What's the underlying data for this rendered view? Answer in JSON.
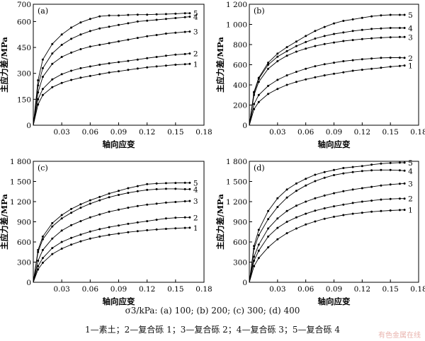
{
  "caption_line1": "σ3/kPa: (a) 100; (b) 200; (c) 300; (d) 400",
  "caption_line2": "1—素土；2—复合砾 1；3—复合砾 2；4—复合砾 3；5—复合砾 4",
  "watermark": "有色金属在线",
  "chart_data": [
    {
      "type": "line",
      "panel_label": "(a)",
      "xlabel": "轴向应变",
      "ylabel": "主应力差/MPa",
      "xlim": [
        0,
        0.18
      ],
      "ylim": [
        0,
        700
      ],
      "xticks": [
        0.03,
        0.06,
        0.09,
        0.12,
        0.15,
        0.18
      ],
      "xticklabels": [
        "0.03",
        "0.06",
        "0.09",
        "0.12",
        "0.15",
        "0.18"
      ],
      "yticks": [
        0,
        150,
        300,
        450,
        600,
        700
      ],
      "yticklabels": [
        "0",
        "150",
        "300",
        "450",
        "600",
        "700"
      ],
      "series": [
        {
          "name": "5",
          "x": [
            0,
            0.005,
            0.01,
            0.02,
            0.03,
            0.04,
            0.05,
            0.06,
            0.07,
            0.08,
            0.09,
            0.1,
            0.11,
            0.12,
            0.13,
            0.14,
            0.15,
            0.16,
            0.165
          ],
          "y": [
            0,
            260,
            380,
            470,
            525,
            565,
            595,
            615,
            630,
            635,
            635,
            638,
            640,
            640,
            642,
            643,
            645,
            648,
            648
          ]
        },
        {
          "name": "4",
          "x": [
            0,
            0.005,
            0.01,
            0.02,
            0.03,
            0.04,
            0.05,
            0.06,
            0.07,
            0.08,
            0.09,
            0.1,
            0.11,
            0.12,
            0.13,
            0.14,
            0.15,
            0.16,
            0.165
          ],
          "y": [
            0,
            230,
            330,
            415,
            465,
            500,
            525,
            545,
            560,
            570,
            580,
            590,
            600,
            605,
            610,
            615,
            620,
            625,
            628
          ]
        },
        {
          "name": "3",
          "x": [
            0,
            0.005,
            0.01,
            0.02,
            0.03,
            0.04,
            0.05,
            0.06,
            0.07,
            0.08,
            0.09,
            0.1,
            0.11,
            0.12,
            0.13,
            0.14,
            0.15,
            0.16,
            0.165
          ],
          "y": [
            0,
            190,
            280,
            355,
            395,
            420,
            440,
            455,
            465,
            475,
            485,
            495,
            505,
            515,
            522,
            530,
            535,
            540,
            542
          ]
        },
        {
          "name": "2",
          "x": [
            0,
            0.005,
            0.01,
            0.02,
            0.03,
            0.04,
            0.05,
            0.06,
            0.07,
            0.08,
            0.09,
            0.1,
            0.11,
            0.12,
            0.13,
            0.14,
            0.15,
            0.16,
            0.165
          ],
          "y": [
            0,
            150,
            210,
            265,
            295,
            315,
            330,
            340,
            350,
            358,
            365,
            372,
            380,
            388,
            395,
            402,
            408,
            412,
            415
          ]
        },
        {
          "name": "1",
          "x": [
            0,
            0.005,
            0.01,
            0.02,
            0.03,
            0.04,
            0.05,
            0.06,
            0.07,
            0.08,
            0.09,
            0.1,
            0.11,
            0.12,
            0.13,
            0.14,
            0.15,
            0.16,
            0.165
          ],
          "y": [
            0,
            120,
            175,
            220,
            245,
            262,
            275,
            285,
            295,
            305,
            312,
            320,
            328,
            335,
            340,
            345,
            350,
            353,
            355
          ]
        }
      ]
    },
    {
      "type": "line",
      "panel_label": "(b)",
      "xlabel": "轴向应变",
      "ylabel": "主应力差/MPa",
      "xlim": [
        0,
        0.18
      ],
      "ylim": [
        0,
        1200
      ],
      "xticks": [
        0.03,
        0.06,
        0.09,
        0.12,
        0.15,
        0.18
      ],
      "xticklabels": [
        "0.03",
        "0.06",
        "0.09",
        "0.12",
        "0.15",
        "0.18"
      ],
      "yticks": [
        0,
        200,
        400,
        600,
        800,
        1000,
        1200
      ],
      "yticklabels": [
        "0",
        "200",
        "400",
        "600",
        "800",
        "1 000",
        "1 200"
      ],
      "series": [
        {
          "name": "5",
          "x": [
            0,
            0.005,
            0.01,
            0.02,
            0.03,
            0.04,
            0.05,
            0.06,
            0.07,
            0.08,
            0.09,
            0.1,
            0.11,
            0.12,
            0.13,
            0.14,
            0.15,
            0.16,
            0.165
          ],
          "y": [
            0,
            330,
            470,
            620,
            710,
            775,
            830,
            885,
            935,
            975,
            1010,
            1035,
            1050,
            1065,
            1080,
            1090,
            1095,
            1095,
            1095
          ]
        },
        {
          "name": "4",
          "x": [
            0,
            0.005,
            0.01,
            0.02,
            0.03,
            0.04,
            0.05,
            0.06,
            0.07,
            0.08,
            0.09,
            0.1,
            0.11,
            0.12,
            0.13,
            0.14,
            0.15,
            0.16,
            0.165
          ],
          "y": [
            0,
            320,
            460,
            600,
            680,
            735,
            785,
            825,
            860,
            885,
            905,
            920,
            935,
            945,
            955,
            960,
            965,
            965,
            965
          ]
        },
        {
          "name": "3",
          "x": [
            0,
            0.005,
            0.01,
            0.02,
            0.03,
            0.04,
            0.05,
            0.06,
            0.07,
            0.08,
            0.09,
            0.1,
            0.11,
            0.12,
            0.13,
            0.14,
            0.15,
            0.16,
            0.165
          ],
          "y": [
            0,
            300,
            430,
            560,
            635,
            690,
            730,
            760,
            785,
            805,
            820,
            835,
            845,
            855,
            862,
            868,
            872,
            875,
            875
          ]
        },
        {
          "name": "2",
          "x": [
            0,
            0.005,
            0.01,
            0.02,
            0.03,
            0.04,
            0.05,
            0.06,
            0.07,
            0.08,
            0.09,
            0.1,
            0.11,
            0.12,
            0.13,
            0.14,
            0.15,
            0.16,
            0.165
          ],
          "y": [
            0,
            210,
            300,
            390,
            450,
            495,
            530,
            560,
            585,
            605,
            620,
            635,
            645,
            655,
            662,
            668,
            670,
            670,
            668
          ]
        },
        {
          "name": "1",
          "x": [
            0,
            0.005,
            0.01,
            0.02,
            0.03,
            0.04,
            0.05,
            0.06,
            0.07,
            0.08,
            0.09,
            0.1,
            0.11,
            0.12,
            0.13,
            0.14,
            0.15,
            0.16,
            0.165
          ],
          "y": [
            0,
            160,
            230,
            310,
            360,
            400,
            430,
            455,
            475,
            495,
            510,
            525,
            540,
            550,
            560,
            570,
            580,
            588,
            592
          ]
        }
      ]
    },
    {
      "type": "line",
      "panel_label": "(c)",
      "xlabel": "轴向应变",
      "ylabel": "主应力差/MPa",
      "xlim": [
        0,
        0.18
      ],
      "ylim": [
        0,
        1800
      ],
      "xticks": [
        0.03,
        0.06,
        0.09,
        0.12,
        0.15,
        0.18
      ],
      "xticklabels": [
        "0.03",
        "0.06",
        "0.09",
        "0.12",
        "0.15",
        "0.18"
      ],
      "yticks": [
        0,
        300,
        600,
        900,
        1200,
        1500,
        1800
      ],
      "yticklabels": [
        "0",
        "300",
        "600",
        "900",
        "1 200",
        "1 500",
        "1 800"
      ],
      "series": [
        {
          "name": "5",
          "x": [
            0,
            0.005,
            0.01,
            0.02,
            0.03,
            0.04,
            0.05,
            0.06,
            0.07,
            0.08,
            0.09,
            0.1,
            0.11,
            0.12,
            0.13,
            0.14,
            0.15,
            0.16,
            0.165
          ],
          "y": [
            0,
            480,
            680,
            880,
            1000,
            1090,
            1160,
            1220,
            1270,
            1320,
            1360,
            1400,
            1430,
            1460,
            1470,
            1475,
            1478,
            1480,
            1480
          ]
        },
        {
          "name": "4",
          "x": [
            0,
            0.005,
            0.01,
            0.02,
            0.03,
            0.04,
            0.05,
            0.06,
            0.07,
            0.08,
            0.09,
            0.1,
            0.11,
            0.12,
            0.13,
            0.14,
            0.15,
            0.16,
            0.165
          ],
          "y": [
            0,
            450,
            640,
            830,
            950,
            1035,
            1110,
            1170,
            1220,
            1265,
            1300,
            1330,
            1355,
            1375,
            1385,
            1390,
            1390,
            1385,
            1385
          ]
        },
        {
          "name": "3",
          "x": [
            0,
            0.005,
            0.01,
            0.02,
            0.03,
            0.04,
            0.05,
            0.06,
            0.07,
            0.08,
            0.09,
            0.1,
            0.11,
            0.12,
            0.13,
            0.14,
            0.15,
            0.16,
            0.165
          ],
          "y": [
            0,
            320,
            480,
            650,
            770,
            850,
            910,
            965,
            1010,
            1050,
            1080,
            1110,
            1135,
            1155,
            1170,
            1185,
            1195,
            1205,
            1210
          ]
        },
        {
          "name": "2",
          "x": [
            0,
            0.005,
            0.01,
            0.02,
            0.03,
            0.04,
            0.05,
            0.06,
            0.07,
            0.08,
            0.09,
            0.1,
            0.11,
            0.12,
            0.13,
            0.14,
            0.15,
            0.16,
            0.165
          ],
          "y": [
            0,
            240,
            360,
            510,
            600,
            660,
            710,
            755,
            790,
            820,
            845,
            870,
            890,
            910,
            930,
            950,
            960,
            965,
            965
          ]
        },
        {
          "name": "1",
          "x": [
            0,
            0.005,
            0.01,
            0.02,
            0.03,
            0.04,
            0.05,
            0.06,
            0.07,
            0.08,
            0.09,
            0.1,
            0.11,
            0.12,
            0.13,
            0.14,
            0.15,
            0.16,
            0.165
          ],
          "y": [
            0,
            190,
            290,
            420,
            500,
            560,
            610,
            650,
            680,
            705,
            725,
            745,
            760,
            775,
            785,
            795,
            803,
            810,
            812
          ]
        }
      ]
    },
    {
      "type": "line",
      "panel_label": "(d)",
      "xlabel": "轴向应变",
      "ylabel": "主应力差/MPa",
      "xlim": [
        0,
        0.18
      ],
      "ylim": [
        0,
        1800
      ],
      "xticks": [
        0.03,
        0.06,
        0.09,
        0.12,
        0.15,
        0.18
      ],
      "xticklabels": [
        "0.03",
        "0.06",
        "0.09",
        "0.12",
        "0.15",
        "0.18"
      ],
      "yticks": [
        0,
        300,
        600,
        900,
        1200,
        1500,
        1800
      ],
      "yticklabels": [
        "0",
        "300",
        "600",
        "900",
        "1 200",
        "1 500",
        "1 800"
      ],
      "series": [
        {
          "name": "5",
          "x": [
            0,
            0.005,
            0.01,
            0.02,
            0.03,
            0.04,
            0.05,
            0.06,
            0.07,
            0.08,
            0.09,
            0.1,
            0.11,
            0.12,
            0.13,
            0.14,
            0.15,
            0.16,
            0.165
          ],
          "y": [
            0,
            540,
            780,
            1060,
            1250,
            1380,
            1470,
            1540,
            1600,
            1640,
            1670,
            1700,
            1715,
            1730,
            1750,
            1765,
            1775,
            1780,
            1780
          ]
        },
        {
          "name": "4",
          "x": [
            0,
            0.005,
            0.01,
            0.02,
            0.03,
            0.04,
            0.05,
            0.06,
            0.07,
            0.08,
            0.09,
            0.1,
            0.11,
            0.12,
            0.13,
            0.14,
            0.15,
            0.16,
            0.165
          ],
          "y": [
            0,
            500,
            700,
            940,
            1120,
            1260,
            1360,
            1440,
            1505,
            1555,
            1595,
            1620,
            1640,
            1655,
            1665,
            1670,
            1670,
            1665,
            1660
          ]
        },
        {
          "name": "3",
          "x": [
            0,
            0.005,
            0.01,
            0.02,
            0.03,
            0.04,
            0.05,
            0.06,
            0.07,
            0.08,
            0.09,
            0.1,
            0.11,
            0.12,
            0.13,
            0.14,
            0.15,
            0.16,
            0.165
          ],
          "y": [
            0,
            380,
            560,
            800,
            950,
            1060,
            1140,
            1200,
            1250,
            1290,
            1325,
            1355,
            1380,
            1400,
            1420,
            1440,
            1455,
            1465,
            1470
          ]
        },
        {
          "name": "2",
          "x": [
            0,
            0.005,
            0.01,
            0.02,
            0.03,
            0.04,
            0.05,
            0.06,
            0.07,
            0.08,
            0.09,
            0.1,
            0.11,
            0.12,
            0.13,
            0.14,
            0.15,
            0.16,
            0.165
          ],
          "y": [
            0,
            320,
            470,
            680,
            810,
            900,
            965,
            1020,
            1065,
            1100,
            1130,
            1155,
            1180,
            1200,
            1215,
            1230,
            1240,
            1245,
            1245
          ]
        },
        {
          "name": "1",
          "x": [
            0,
            0.005,
            0.01,
            0.02,
            0.03,
            0.04,
            0.05,
            0.06,
            0.07,
            0.08,
            0.09,
            0.1,
            0.11,
            0.12,
            0.13,
            0.14,
            0.15,
            0.16,
            0.165
          ],
          "y": [
            0,
            240,
            360,
            520,
            640,
            730,
            800,
            860,
            905,
            945,
            975,
            1000,
            1020,
            1035,
            1050,
            1060,
            1068,
            1075,
            1078
          ]
        }
      ]
    }
  ]
}
